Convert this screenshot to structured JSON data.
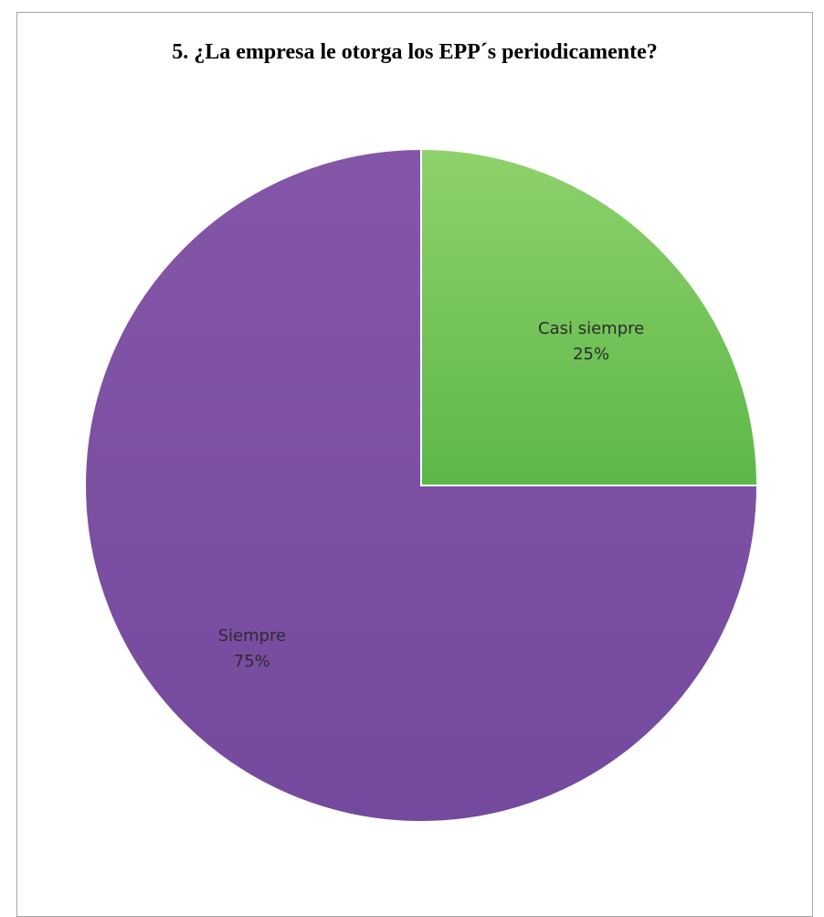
{
  "chart_data": {
    "type": "pie",
    "title": "5. ¿La empresa le otorga los EPP´s periodicamente?",
    "categories": [
      "Casi siempre",
      "Siempre"
    ],
    "values": [
      25,
      75
    ],
    "value_labels": [
      "25%",
      "75%"
    ],
    "colors": [
      "#6abf4b",
      "#7a4fa3"
    ],
    "legend": "none",
    "data_labels": "inside"
  }
}
